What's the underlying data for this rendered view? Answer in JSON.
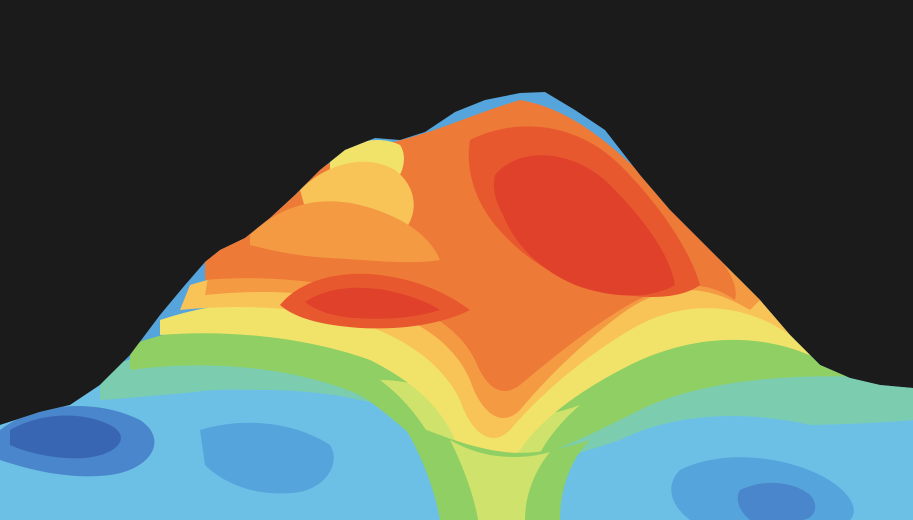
{
  "image": {
    "background_color": "#1b1b1b",
    "palette": {
      "red": "#e0412b",
      "red_orange": "#e8582e",
      "orange": "#ee7a37",
      "light_orange": "#f49a43",
      "yellow_orange": "#f8c457",
      "yellow": "#f1e36a",
      "yellow_green": "#cfe26b",
      "green": "#8fcf63",
      "teal_green": "#7ccdb0",
      "light_blue": "#6cc0e6",
      "blue": "#55a4db",
      "mid_blue": "#4a86cb",
      "dark_blue": "#3966b3"
    }
  }
}
